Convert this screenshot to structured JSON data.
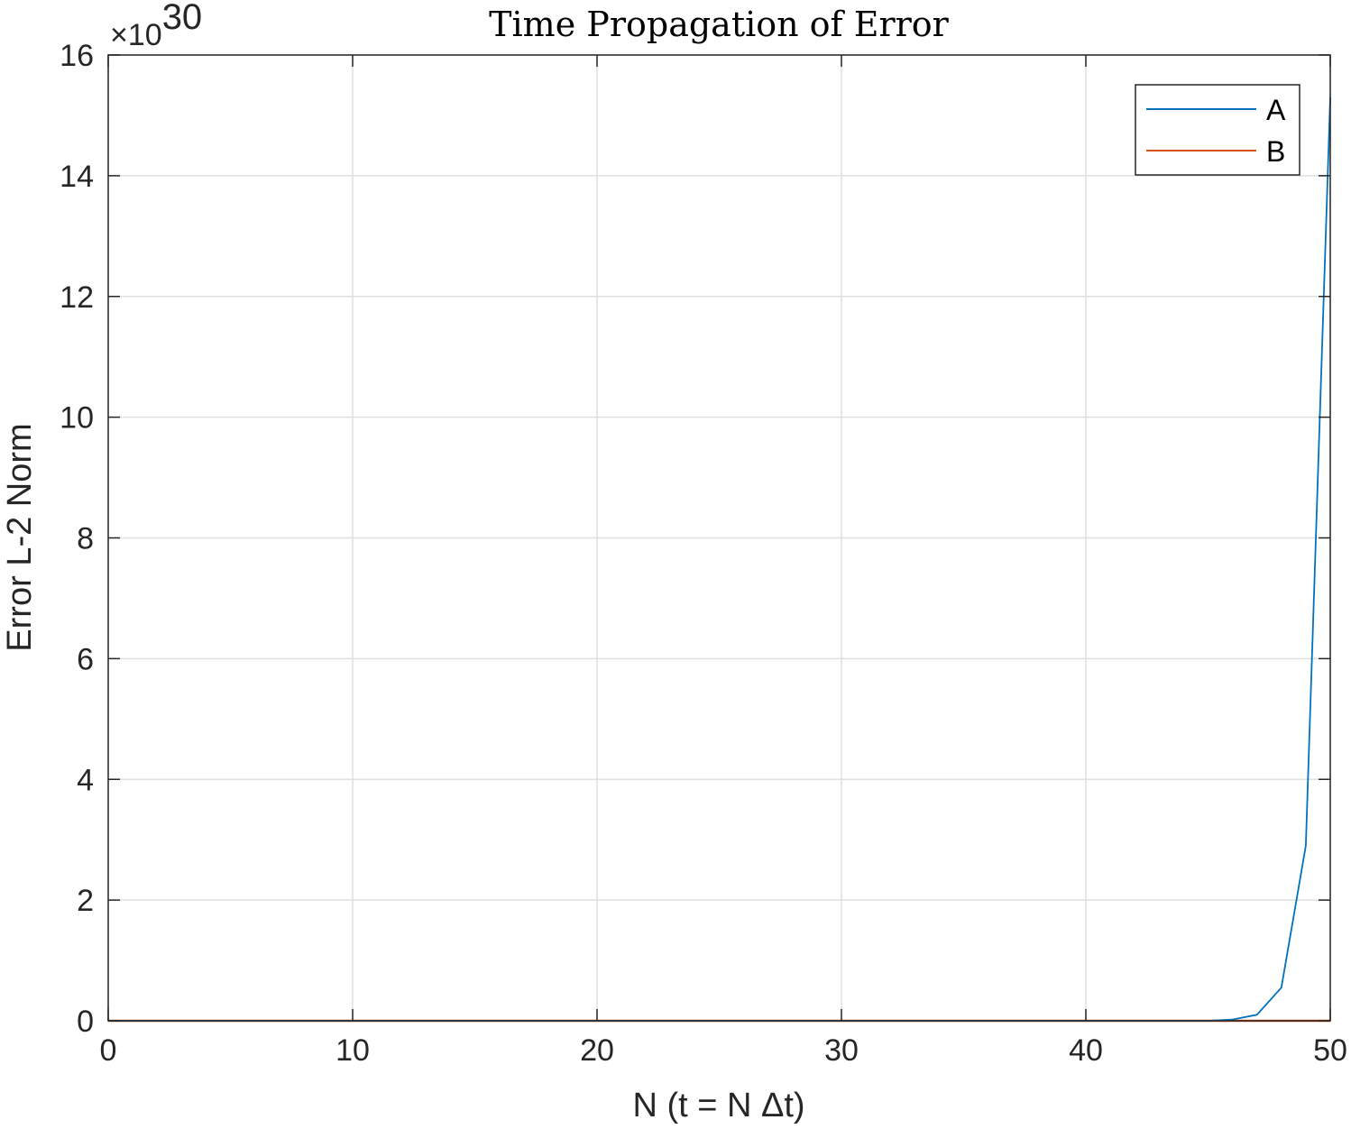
{
  "chart_data": {
    "type": "line",
    "title": "Time Propagation of Error",
    "xlabel": "N (t = N Δt)",
    "ylabel": "Error L-2 Norm",
    "xlim": [
      0,
      50
    ],
    "ylim": [
      0,
      16
    ],
    "x_ticks": [
      0,
      10,
      20,
      30,
      40,
      50
    ],
    "y_ticks": [
      0,
      2,
      4,
      6,
      8,
      10,
      12,
      14,
      16
    ],
    "y_exponent": {
      "times": "×10",
      "power": "30"
    },
    "grid": true,
    "legend_position": "top-right",
    "x": [
      0,
      1,
      2,
      3,
      4,
      5,
      6,
      7,
      8,
      9,
      10,
      11,
      12,
      13,
      14,
      15,
      16,
      17,
      18,
      19,
      20,
      21,
      22,
      23,
      24,
      25,
      26,
      27,
      28,
      29,
      30,
      31,
      32,
      33,
      34,
      35,
      36,
      37,
      38,
      39,
      40,
      41,
      42,
      43,
      44,
      45,
      46,
      47,
      48,
      49,
      50
    ],
    "series": [
      {
        "name": "A",
        "color": "#0072BD",
        "values": [
          0,
          0,
          0,
          0,
          0,
          0,
          0,
          0,
          0,
          0,
          0,
          0,
          0,
          0,
          0,
          0,
          0,
          0,
          0,
          0,
          0,
          0,
          0,
          0,
          0,
          0,
          0,
          0,
          0,
          0,
          0,
          0,
          0,
          0,
          0,
          0,
          0,
          0,
          0,
          0,
          0,
          0,
          0,
          0,
          0,
          0.0005,
          0.02,
          0.1,
          0.55,
          2.9,
          15.3
        ]
      },
      {
        "name": "B",
        "color": "#D95319",
        "values": [
          0,
          0,
          0,
          0,
          0,
          0,
          0,
          0,
          0,
          0,
          0,
          0,
          0,
          0,
          0,
          0,
          0,
          0,
          0,
          0,
          0,
          0,
          0,
          0,
          0,
          0,
          0,
          0,
          0,
          0,
          0,
          0,
          0,
          0,
          0,
          0,
          0,
          0,
          0,
          0,
          0,
          0,
          0,
          0,
          0,
          0,
          0,
          0,
          0,
          0,
          0
        ]
      }
    ]
  }
}
